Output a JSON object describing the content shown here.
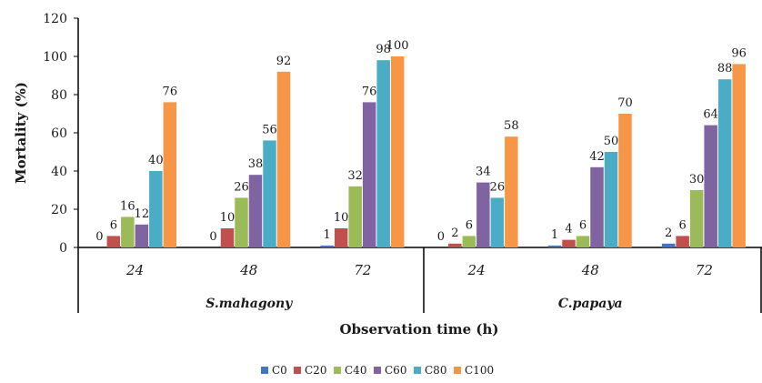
{
  "chart_data": {
    "type": "bar",
    "title": "",
    "xlabel": "Observation time (h)",
    "ylabel": "Mortality (%)",
    "ylim": [
      0,
      120
    ],
    "yticks": [
      "0",
      "20",
      "40",
      "60",
      "80",
      "100",
      "120"
    ],
    "groups": [
      {
        "name": "S.mahagony",
        "categories": [
          "24",
          "48",
          "72"
        ]
      },
      {
        "name": "C.papaya",
        "categories": [
          "24",
          "48",
          "72"
        ]
      }
    ],
    "series": [
      {
        "name": "C0",
        "color": "#4472c4",
        "values": [
          0,
          0,
          1,
          0,
          1,
          2
        ]
      },
      {
        "name": "C20",
        "color": "#c0504d",
        "values": [
          6,
          10,
          10,
          2,
          4,
          6
        ]
      },
      {
        "name": "C40",
        "color": "#9bbb59",
        "values": [
          16,
          26,
          32,
          6,
          6,
          30
        ]
      },
      {
        "name": "C60",
        "color": "#8064a2",
        "values": [
          12,
          38,
          76,
          34,
          42,
          64
        ]
      },
      {
        "name": "C80",
        "color": "#4bacc6",
        "values": [
          40,
          56,
          98,
          26,
          50,
          88
        ]
      },
      {
        "name": "C100",
        "color": "#f79646",
        "values": [
          76,
          92,
          100,
          58,
          70,
          96
        ]
      }
    ],
    "legend_position": "bottom",
    "grid": false
  }
}
